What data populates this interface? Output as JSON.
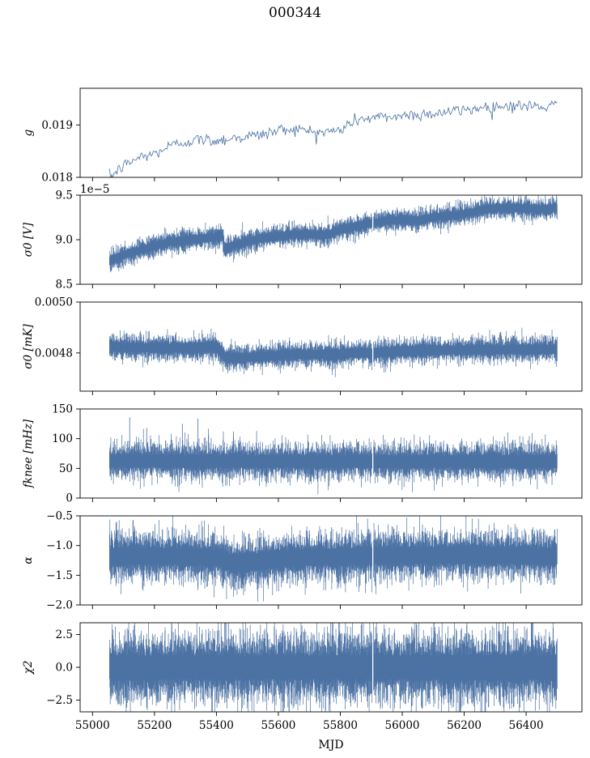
{
  "figure": {
    "title": "000344",
    "xlabel": "MJD"
  },
  "style": {
    "series_color": "#4c72a4",
    "axis_color": "#000000",
    "background": "#ffffff"
  },
  "chart_data": [
    {
      "type": "line",
      "panel": "g",
      "ylabel": "g",
      "ylim": [
        0.018,
        0.0197
      ],
      "yticks": [
        0.018,
        0.019
      ],
      "ytick_labels": [
        "0.018",
        "0.019"
      ],
      "xlim": [
        54960,
        56580
      ],
      "xticks": [
        55000,
        55200,
        55400,
        55600,
        55800,
        56000,
        56200,
        56400
      ],
      "grid": false,
      "series": [
        {
          "style": "thin-line",
          "x": [
            55055,
            55080,
            55100,
            55150,
            55200,
            55250,
            55300,
            55350,
            55400,
            55450,
            55500,
            55550,
            55600,
            55650,
            55700,
            55750,
            55800,
            55850,
            55880,
            55900,
            55950,
            56000,
            56050,
            56100,
            56150,
            56200,
            56250,
            56300,
            56350,
            56400,
            56450,
            56500
          ],
          "values": [
            0.018,
            0.01812,
            0.01822,
            0.01838,
            0.01845,
            0.0186,
            0.01868,
            0.01872,
            0.0187,
            0.01875,
            0.01878,
            0.01882,
            0.0189,
            0.01893,
            0.01888,
            0.01886,
            0.0189,
            0.0191,
            0.01912,
            0.01913,
            0.01915,
            0.01918,
            0.0192,
            0.01922,
            0.01925,
            0.01928,
            0.01933,
            0.01935,
            0.01937,
            0.01936,
            0.01935,
            0.01937
          ],
          "noise": 6e-05
        }
      ]
    },
    {
      "type": "line",
      "panel": "sigma0_V",
      "ylabel": "σ0 [V]",
      "offset_text": "1e−5",
      "ylim": [
        8.5,
        9.5
      ],
      "yticks": [
        8.5,
        9.0,
        9.5
      ],
      "ytick_labels": [
        "8.5",
        "9.0",
        "9.5"
      ],
      "xlim": [
        54960,
        56580
      ],
      "xticks": [
        55000,
        55200,
        55400,
        55600,
        55800,
        56000,
        56200,
        56400
      ],
      "grid": false,
      "series": [
        {
          "style": "band",
          "x": [
            55055,
            55100,
            55150,
            55200,
            55250,
            55300,
            55350,
            55400,
            55420,
            55425,
            55450,
            55500,
            55550,
            55600,
            55650,
            55700,
            55750,
            55800,
            55850,
            55900,
            55950,
            56000,
            56050,
            56100,
            56150,
            56200,
            56250,
            56300,
            56350,
            56400,
            56450,
            56500
          ],
          "values": [
            8.76,
            8.83,
            8.88,
            8.93,
            8.97,
            8.99,
            9.01,
            9.03,
            9.05,
            8.91,
            8.93,
            8.98,
            9.02,
            9.04,
            9.06,
            9.06,
            9.05,
            9.11,
            9.15,
            9.19,
            9.21,
            9.22,
            9.22,
            9.25,
            9.27,
            9.29,
            9.33,
            9.35,
            9.36,
            9.35,
            9.34,
            9.36
          ],
          "spread": 0.11
        }
      ]
    },
    {
      "type": "line",
      "panel": "sigma0_mK",
      "ylabel": "σ0 [mK]",
      "ylim": [
        0.00465,
        0.005
      ],
      "yticks": [
        0.0048,
        0.005
      ],
      "ytick_labels": [
        "0.0048",
        "0.0050"
      ],
      "xlim": [
        54960,
        56580
      ],
      "xticks": [
        55000,
        55200,
        55400,
        55600,
        55800,
        56000,
        56200,
        56400
      ],
      "grid": false,
      "series": [
        {
          "style": "band",
          "x": [
            55055,
            55100,
            55200,
            55300,
            55400,
            55420,
            55430,
            55450,
            55500,
            55600,
            55700,
            55800,
            55850,
            55900,
            56000,
            56100,
            56200,
            56300,
            56400,
            56500
          ],
          "values": [
            0.004825,
            0.004823,
            0.00482,
            0.004818,
            0.004825,
            0.00479,
            0.004785,
            0.00478,
            0.004782,
            0.00479,
            0.004795,
            0.004795,
            0.0048,
            0.0048,
            0.004806,
            0.00481,
            0.004812,
            0.004812,
            0.004814,
            0.004815
          ],
          "spread": 4.5e-05
        }
      ]
    },
    {
      "type": "line",
      "panel": "fknee",
      "ylabel": "fknee [mHz]",
      "ylim": [
        0,
        150
      ],
      "yticks": [
        0,
        50,
        100,
        150
      ],
      "ytick_labels": [
        "0",
        "50",
        "100",
        "150"
      ],
      "xlim": [
        54960,
        56580
      ],
      "xticks": [
        55000,
        55200,
        55400,
        55600,
        55800,
        56000,
        56200,
        56400
      ],
      "grid": false,
      "series": [
        {
          "style": "band",
          "x": [
            55055,
            55200,
            55400,
            55600,
            55800,
            56000,
            56200,
            56400,
            56500
          ],
          "values": [
            63,
            63,
            62,
            62,
            62,
            61,
            62,
            62,
            62
          ],
          "spread": 28,
          "spikes": [
            [
              55120,
              136
            ],
            [
              55340,
              134
            ],
            [
              55290,
              125
            ],
            [
              55175,
              118
            ],
            [
              55455,
              112
            ]
          ]
        }
      ]
    },
    {
      "type": "line",
      "panel": "alpha",
      "ylabel": "α",
      "ylim": [
        -2.0,
        -0.5
      ],
      "yticks": [
        -2.0,
        -1.5,
        -1.0,
        -0.5
      ],
      "ytick_labels": [
        "−2.0",
        "−1.5",
        "−1.0",
        "−0.5"
      ],
      "xlim": [
        54960,
        56580
      ],
      "xticks": [
        55000,
        55200,
        55400,
        55600,
        55800,
        56000,
        56200,
        56400
      ],
      "grid": false,
      "series": [
        {
          "style": "band",
          "x": [
            55055,
            55200,
            55400,
            55450,
            55500,
            55600,
            55800,
            56000,
            56200,
            56400,
            56500
          ],
          "values": [
            -1.18,
            -1.17,
            -1.2,
            -1.3,
            -1.28,
            -1.22,
            -1.18,
            -1.17,
            -1.16,
            -1.17,
            -1.18
          ],
          "spread": 0.38,
          "spikes": [
            [
              55270,
              -0.72
            ],
            [
              55340,
              -1.75
            ]
          ]
        }
      ]
    },
    {
      "type": "line",
      "panel": "chi2",
      "ylabel": "χ2",
      "ylim": [
        -3.4,
        3.4
      ],
      "yticks": [
        -2.5,
        0.0,
        2.5
      ],
      "ytick_labels": [
        "−2.5",
        "0.0",
        "2.5"
      ],
      "xlim": [
        54960,
        56580
      ],
      "xticks": [
        55000,
        55200,
        55400,
        55600,
        55800,
        56000,
        56200,
        56400
      ],
      "xtick_labels": [
        "55000",
        "55200",
        "55400",
        "55600",
        "55800",
        "56000",
        "56200",
        "56400"
      ],
      "grid": false,
      "series": [
        {
          "style": "band",
          "x": [
            55055,
            55300,
            55600,
            55900,
            56200,
            56500
          ],
          "values": [
            0.0,
            0.0,
            0.0,
            0.0,
            0.0,
            0.0
          ],
          "spread": 2.5
        }
      ]
    }
  ]
}
